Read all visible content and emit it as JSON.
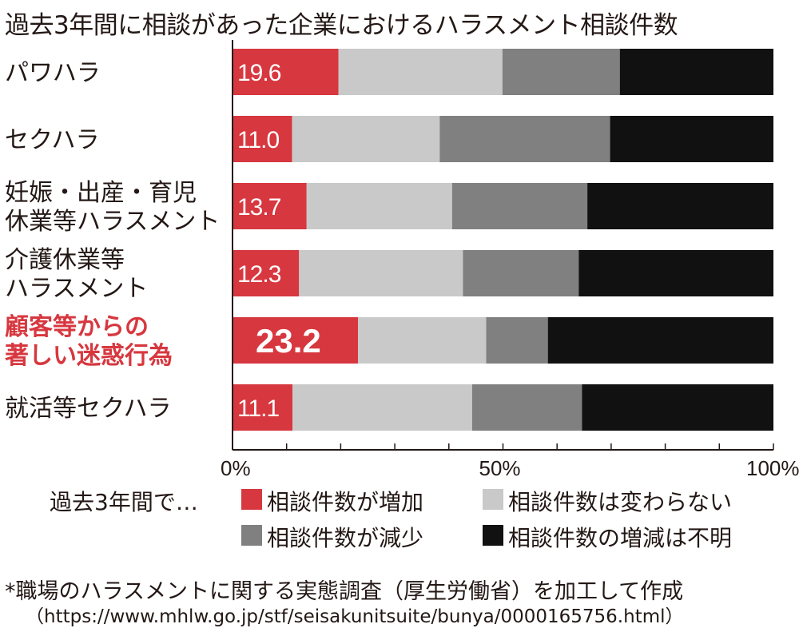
{
  "title": "過去3年間に相談があった企業におけるハラスメント相談件数",
  "colors": {
    "increase": "#d7373f",
    "unchanged": "#c9c9c9",
    "decrease": "#808080",
    "unknown": "#111111",
    "highlight_text": "#d7373f",
    "text": "#231815"
  },
  "chart_data": {
    "type": "bar",
    "orientation": "horizontal",
    "stacked": true,
    "categories": [
      [
        "パワハラ"
      ],
      [
        "セクハラ"
      ],
      [
        "妊娠・出産・育児",
        "休業等ハラスメント"
      ],
      [
        "介護休業等",
        "ハラスメント"
      ],
      [
        "顧客等からの",
        "著しい迷惑行為"
      ],
      [
        "就活等セクハラ"
      ]
    ],
    "highlight_index": 4,
    "series": [
      {
        "name": "相談件数が増加",
        "values": [
          19.6,
          11.0,
          13.7,
          12.3,
          23.2,
          11.1
        ]
      },
      {
        "name": "相談件数は変わらない",
        "values": [
          30.3,
          27.3,
          26.9,
          30.3,
          23.7,
          33.2
        ]
      },
      {
        "name": "相談件数が減少",
        "values": [
          21.7,
          31.5,
          25.0,
          21.4,
          11.4,
          20.3
        ]
      },
      {
        "name": "相談件数の増減は不明",
        "values": [
          28.4,
          30.2,
          34.4,
          36.0,
          41.7,
          35.4
        ]
      }
    ],
    "data_labels": [
      "19.6",
      "11.0",
      "13.7",
      "12.3",
      "23.2",
      "11.1"
    ],
    "xlim": [
      0,
      100
    ],
    "xtick_labels": [
      "0%",
      "50%",
      "100%"
    ],
    "legend_prefix": "過去3年間で…",
    "legend_placement": "bottom"
  },
  "notes": [
    "*職場のハラスメントに関する実態調査（厚生労働省）を加工して作成",
    "（https://www.mhlw.go.jp/stf/seisakunitsuite/bunya/0000165756.html）"
  ]
}
